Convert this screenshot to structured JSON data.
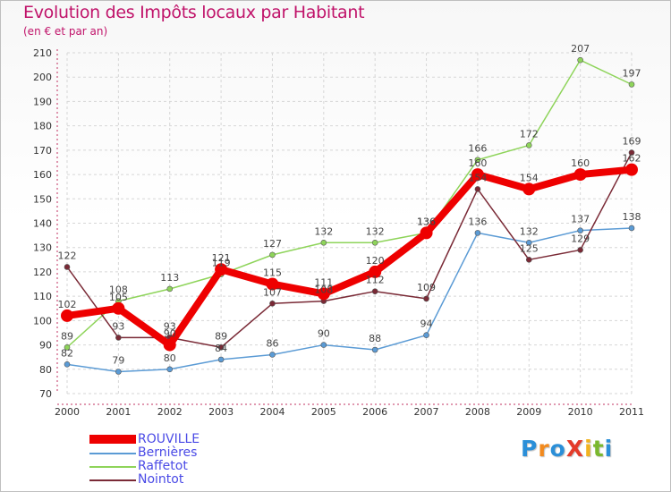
{
  "title": "Evolution des Impôts locaux par Habitant",
  "subtitle": "(en € et par an)",
  "logo": {
    "text": "ProXiti",
    "letters": [
      "P",
      "r",
      "o",
      "X",
      "i",
      "t",
      "i"
    ],
    "colors": [
      "#2b8fd8",
      "#f28a1e",
      "#2b8fd8",
      "#e43b2a",
      "#f2b31e",
      "#7ab82e",
      "#2b8fd8"
    ]
  },
  "chart_data": {
    "type": "line",
    "title": "Evolution des Impôts locaux par Habitant",
    "subtitle": "(en € et par an)",
    "xlabel": "",
    "ylabel": "",
    "categories": [
      "2000",
      "2001",
      "2002",
      "2003",
      "2004",
      "2005",
      "2006",
      "2007",
      "2008",
      "2009",
      "2010",
      "2011"
    ],
    "ylim": [
      70,
      210
    ],
    "yticks": [
      70,
      80,
      90,
      100,
      110,
      120,
      130,
      140,
      150,
      160,
      170,
      180,
      190,
      200,
      210
    ],
    "legend_position": "bottom-left",
    "series": [
      {
        "name": "Bernières",
        "color": "#5b9bd5",
        "values": [
          82,
          79,
          80,
          84,
          86,
          90,
          88,
          94,
          136,
          132,
          137,
          138
        ],
        "labels": [
          "82",
          "79",
          "80",
          "84",
          "86",
          "90",
          "88",
          "94",
          "136",
          "132",
          "137",
          "138"
        ]
      },
      {
        "name": "Raffetot",
        "color": "#8ed45a",
        "values": [
          89,
          108,
          113,
          119,
          127,
          132,
          132,
          136,
          166,
          172,
          207,
          197
        ],
        "labels": [
          "89",
          "108",
          "113",
          "119",
          "127",
          "132",
          "132",
          "136",
          "166",
          "172",
          "207",
          "197"
        ]
      },
      {
        "name": "Nointot",
        "color": "#7a2a36",
        "values": [
          122,
          93,
          93,
          89,
          107,
          108,
          112,
          109,
          154,
          125,
          129,
          169
        ],
        "labels": [
          "122",
          "93",
          "93",
          "89",
          "107",
          "108",
          "112",
          "109",
          "154",
          "125",
          "129",
          "169"
        ]
      },
      {
        "name": "ROUVILLE",
        "color": "#ee0000",
        "values": [
          102,
          105,
          90,
          121,
          115,
          111,
          120,
          136,
          160,
          154,
          160,
          162
        ],
        "labels": [
          "102",
          "105",
          "90",
          "121",
          "115",
          "111",
          "120",
          "136",
          "160",
          "154",
          "160",
          "162"
        ]
      }
    ],
    "legend": [
      "ROUVILLE",
      "Bernières",
      "Raffetot",
      "Nointot"
    ]
  }
}
